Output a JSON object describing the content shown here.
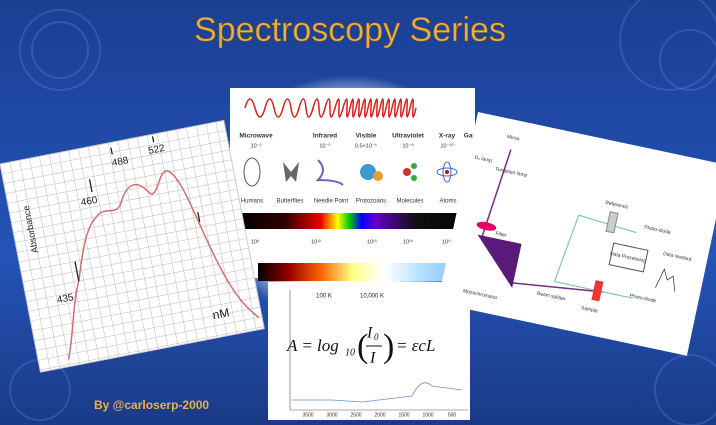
{
  "title": "Spectroscopy Series",
  "author": "By @carloserp-2000",
  "absorbance_chart": {
    "y_label": "Absorbance",
    "peaks": [
      "435",
      "460",
      "488",
      "522"
    ],
    "x_label": "nM"
  },
  "spectrum": {
    "regions": [
      "Microwave",
      "Infrared",
      "Visible",
      "Ultraviolet",
      "X-ray",
      "Gam"
    ],
    "wavelengths": [
      "10⁻²",
      "10⁻⁵",
      "0.5×10⁻⁶",
      "10⁻⁸",
      "10⁻¹⁰"
    ],
    "scales": [
      "Humans",
      "Butterflies",
      "Needle Point",
      "Protozoans",
      "Molecules",
      "Atoms"
    ],
    "frequencies": [
      "10⁸",
      "10¹²",
      "10¹⁵",
      "10¹⁶",
      "10¹⁸"
    ],
    "temperatures": [
      "100 K",
      "10,000 K"
    ]
  },
  "formula": {
    "lhs": "A = log",
    "base": "10",
    "numerator": "I",
    "numerator_sub": "0",
    "denominator": "I",
    "rhs": "= εcL",
    "x_ticks": [
      "3500",
      "3000",
      "2500",
      "2000",
      "1500",
      "1000",
      "500"
    ]
  },
  "spectrometer": {
    "labels": [
      "Mirror",
      "D₂ lamp",
      "Tungsten lamp",
      "Filter",
      "Monochromator",
      "Beam splitter",
      "Sample",
      "Reference",
      "Photo-diode",
      "Photo-diode",
      "Data Processing",
      "Data readout"
    ]
  }
}
